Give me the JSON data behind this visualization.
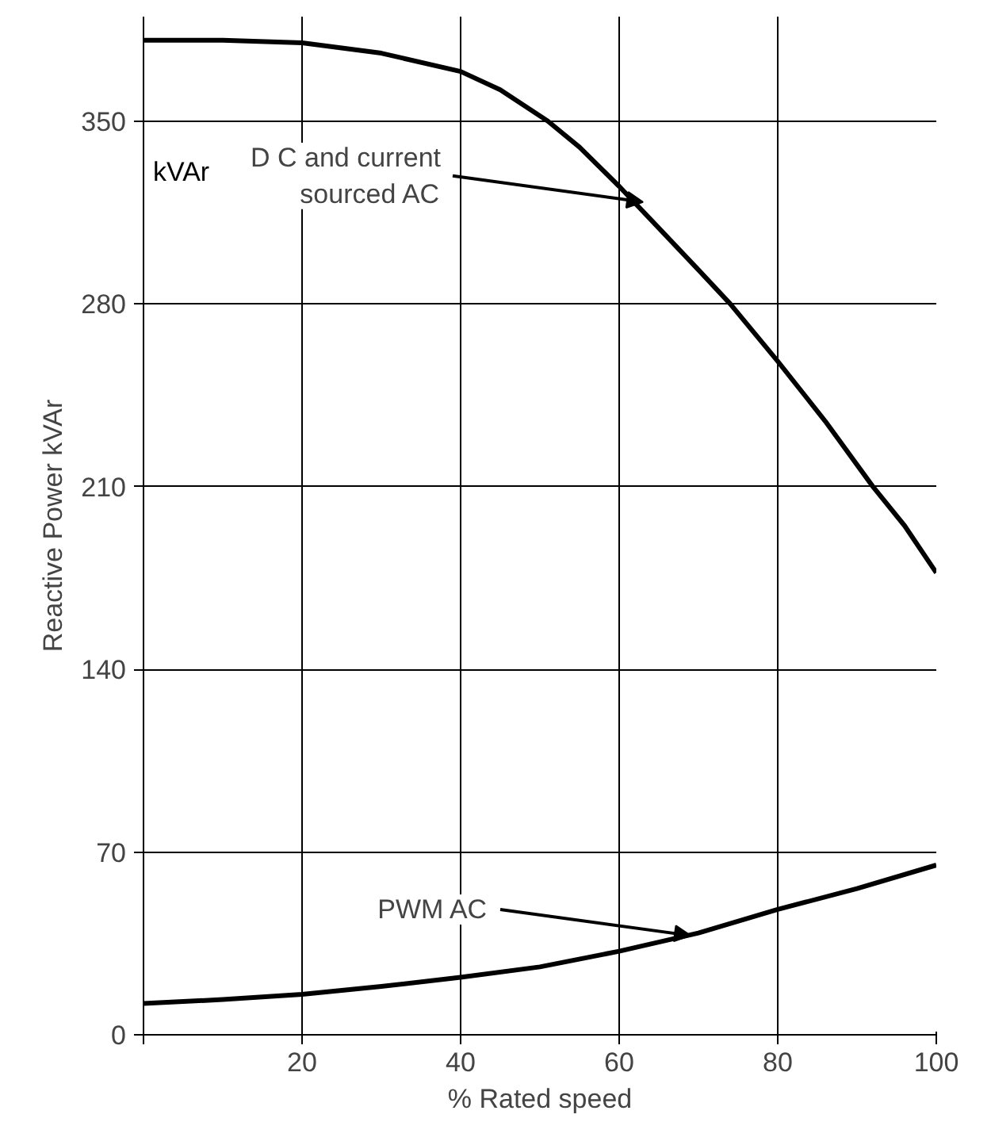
{
  "chart_data": {
    "type": "line",
    "xlabel": "% Rated speed",
    "ylabel": "Reactive Power kVAr",
    "xlim": [
      0,
      100
    ],
    "ylim": [
      0,
      390
    ],
    "xticks": [
      {
        "value": 0,
        "label": null
      },
      20,
      40,
      60,
      80,
      100
    ],
    "yticks": [
      0,
      70,
      140,
      210,
      280,
      350
    ],
    "grid": true,
    "line_style": "solid",
    "marker": "none",
    "series": [
      {
        "color": "#000000",
        "x": [
          0,
          10,
          20,
          30,
          40,
          45,
          51,
          55,
          60,
          65,
          70,
          74,
          80,
          86,
          92,
          96,
          100
        ],
        "values": [
          381,
          381,
          380,
          376,
          369,
          362,
          350,
          340,
          325,
          309,
          293,
          280,
          258,
          235,
          210,
          195,
          177
        ]
      },
      {
        "color": "#000000",
        "x": [
          0,
          10,
          20,
          30,
          40,
          50,
          60,
          70,
          80,
          90,
          100
        ],
        "values": [
          12,
          13.5,
          15.5,
          18.5,
          22,
          26,
          32,
          39,
          48,
          56,
          65
        ]
      }
    ],
    "annotations": [
      "kVAr",
      {
        "text": "D C and current\nsourced AC",
        "x": 63,
        "y": 319
      },
      {
        "text": "PWM AC",
        "x": 69,
        "y": 38
      }
    ]
  }
}
